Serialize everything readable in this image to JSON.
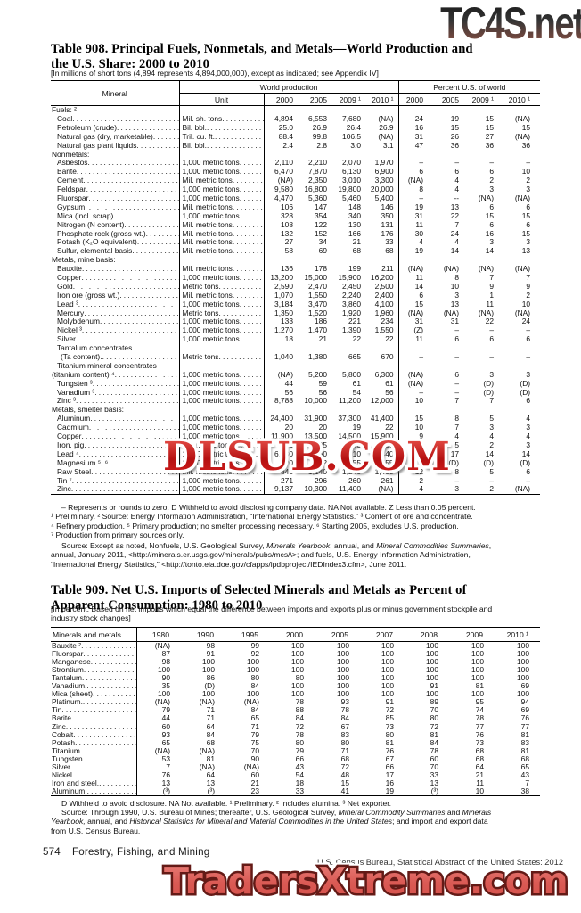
{
  "watermarks": {
    "top": "TC4S.net",
    "middle": "DLSUB.COM",
    "bottom": "TradersXtreme.com"
  },
  "t908": {
    "title1": "Table 908. Principal Fuels, Nonmetals, and Metals—World Production and",
    "title2": "the U.S. Share: 2000 to 2010",
    "note": "[In millions of short tons (4,894 represents 4,894,000,000), except as indicated; see Appendix IV]",
    "head": {
      "mineral": "Mineral",
      "world": "World production",
      "pct": "Percent U.S. of world",
      "unit": "Unit",
      "years": [
        "2000",
        "2005",
        "2009 ¹",
        "2010 ¹"
      ]
    },
    "rows": [
      {
        "t": "s",
        "l": "Fuels: ²"
      },
      {
        "t": "d",
        "l": "Coal",
        "u": "Mil. sh. tons",
        "w": [
          "4,894",
          "6,553",
          "7,680",
          "(NA)"
        ],
        "p": [
          "24",
          "19",
          "15",
          "(NA)"
        ]
      },
      {
        "t": "d",
        "l": "Petroleum (crude)",
        "u": "Bil. bbl.",
        "w": [
          "25.0",
          "26.9",
          "26.4",
          "26.9"
        ],
        "p": [
          "16",
          "15",
          "15",
          "15"
        ]
      },
      {
        "t": "d",
        "l": "Natural gas (dry, marketable)",
        "u": "Tril. cu. ft.",
        "w": [
          "88.4",
          "99.8",
          "106.5",
          "(NA)"
        ],
        "p": [
          "31",
          "26",
          "27",
          "(NA)"
        ]
      },
      {
        "t": "d",
        "l": "Natural gas plant liquids",
        "u": "Bil. bbl.",
        "w": [
          "2.4",
          "2.8",
          "3.0",
          "3.1"
        ],
        "p": [
          "47",
          "36",
          "36",
          "36"
        ]
      },
      {
        "t": "s",
        "l": "Nonmetals:"
      },
      {
        "t": "d",
        "l": "Asbestos",
        "u": "1,000 metric tons",
        "w": [
          "2,110",
          "2,210",
          "2,070",
          "1,970"
        ],
        "p": [
          "–",
          "–",
          "–",
          "–"
        ]
      },
      {
        "t": "d",
        "l": "Barite",
        "u": "1,000 metric tons",
        "w": [
          "6,470",
          "7,870",
          "6,130",
          "6,900"
        ],
        "p": [
          "6",
          "6",
          "6",
          "10"
        ]
      },
      {
        "t": "d",
        "l": "Cement",
        "u": "Mil. metric tons",
        "w": [
          "(NA)",
          "2,350",
          "3,010",
          "3,300"
        ],
        "p": [
          "(NA)",
          "4",
          "2",
          "2"
        ]
      },
      {
        "t": "d",
        "l": "Feldspar",
        "u": "1,000 metric tons",
        "w": [
          "9,580",
          "16,800",
          "19,800",
          "20,000"
        ],
        "p": [
          "8",
          "4",
          "3",
          "3"
        ]
      },
      {
        "t": "d",
        "l": "Fluorspar",
        "u": "1,000 metric tons",
        "w": [
          "4,470",
          "5,360",
          "5,460",
          "5,400"
        ],
        "p": [
          "–",
          "--",
          "(NA)",
          "(NA)"
        ]
      },
      {
        "t": "d",
        "l": "Gypsum",
        "u": "Mil. metric tons",
        "w": [
          "106",
          "147",
          "148",
          "146"
        ],
        "p": [
          "19",
          "13",
          "6",
          "6"
        ]
      },
      {
        "t": "d",
        "l": "Mica (incl. scrap)",
        "u": "1,000 metric tons",
        "w": [
          "328",
          "354",
          "340",
          "350"
        ],
        "p": [
          "31",
          "22",
          "15",
          "15"
        ]
      },
      {
        "t": "d",
        "l": "Nitrogen (N content)",
        "u": "Mil. metric tons",
        "w": [
          "108",
          "122",
          "130",
          "131"
        ],
        "p": [
          "11",
          "7",
          "6",
          "6"
        ]
      },
      {
        "t": "d",
        "l": "Phosphate rock (gross wt.)",
        "u": "Mil. metric tons",
        "w": [
          "132",
          "152",
          "166",
          "176"
        ],
        "p": [
          "30",
          "24",
          "16",
          "15"
        ]
      },
      {
        "t": "d",
        "l": "Potash (K₂O equivalent)",
        "u": "Mil. metric tons",
        "w": [
          "27",
          "34",
          "21",
          "33"
        ],
        "p": [
          "4",
          "4",
          "3",
          "3"
        ]
      },
      {
        "t": "d",
        "l": "Sulfur, elemental basis",
        "u": "Mil. metric tons",
        "w": [
          "58",
          "69",
          "68",
          "68"
        ],
        "p": [
          "19",
          "14",
          "14",
          "13"
        ]
      },
      {
        "t": "s",
        "l": "Metals, mine basis:"
      },
      {
        "t": "d",
        "l": "Bauxite",
        "u": "Mil. metric tons",
        "w": [
          "136",
          "178",
          "199",
          "211"
        ],
        "p": [
          "(NA)",
          "(NA)",
          "(NA)",
          "(NA)"
        ]
      },
      {
        "t": "d",
        "l": "Copper",
        "u": "1,000 metric tons",
        "w": [
          "13,200",
          "15,000",
          "15,900",
          "16,200"
        ],
        "p": [
          "11",
          "8",
          "7",
          "7"
        ]
      },
      {
        "t": "d",
        "l": "Gold",
        "u": "Metric tons",
        "w": [
          "2,590",
          "2,470",
          "2,450",
          "2,500"
        ],
        "p": [
          "14",
          "10",
          "9",
          "9"
        ]
      },
      {
        "t": "d",
        "l": "Iron ore (gross wt.)",
        "u": "Mil. metric tons",
        "w": [
          "1,070",
          "1,550",
          "2,240",
          "2,400"
        ],
        "p": [
          "6",
          "3",
          "1",
          "2"
        ]
      },
      {
        "t": "d",
        "l": "Lead ³",
        "u": "1,000 metric tons",
        "w": [
          "3,184",
          "3,470",
          "3,860",
          "4,100"
        ],
        "p": [
          "15",
          "13",
          "11",
          "10"
        ]
      },
      {
        "t": "d",
        "l": "Mercury",
        "u": "Metric tons",
        "w": [
          "1,350",
          "1,520",
          "1,920",
          "1,960"
        ],
        "p": [
          "(NA)",
          "(NA)",
          "(NA)",
          "(NA)"
        ]
      },
      {
        "t": "d",
        "l": "Molybdenum",
        "u": "1,000 metric tons",
        "w": [
          "133",
          "186",
          "221",
          "234"
        ],
        "p": [
          "31",
          "31",
          "22",
          "24"
        ]
      },
      {
        "t": "d",
        "l": "Nickel ³",
        "u": "1,000 metric tons",
        "w": [
          "1,270",
          "1,470",
          "1,390",
          "1,550"
        ],
        "p": [
          "(Z)",
          "–",
          "–",
          "–"
        ]
      },
      {
        "t": "d",
        "l": "Silver",
        "u": "1,000 metric tons",
        "w": [
          "18",
          "21",
          "22",
          "22"
        ],
        "p": [
          "11",
          "6",
          "6",
          "6"
        ]
      },
      {
        "t": "l",
        "l": "Tantalum concentrates"
      },
      {
        "t": "d",
        "i": 2,
        "l": "(Ta content).",
        "u": "Metric tons",
        "w": [
          "1,040",
          "1,380",
          "665",
          "670"
        ],
        "p": [
          "–",
          "–",
          "–",
          "–"
        ]
      },
      {
        "t": "l",
        "l": "Titanium mineral concentrates"
      },
      {
        "t": "d",
        "i": 0,
        "l": "(titanium content) ⁴",
        "u": "1,000 metric tons",
        "w": [
          "(NA)",
          "5,200",
          "5,800",
          "6,300"
        ],
        "p": [
          "(NA)",
          "6",
          "3",
          "3"
        ]
      },
      {
        "t": "d",
        "l": "Tungsten ³",
        "u": "1,000 metric tons",
        "w": [
          "44",
          "59",
          "61",
          "61"
        ],
        "p": [
          "(NA)",
          "–",
          "(D)",
          "(D)"
        ]
      },
      {
        "t": "d",
        "l": "Vanadium ³",
        "u": "1,000 metric tons",
        "w": [
          "56",
          "56",
          "54",
          "56"
        ],
        "p": [
          "–",
          "–",
          "(D)",
          "(D)"
        ]
      },
      {
        "t": "d",
        "l": "Zinc ³",
        "u": "1,000 metric tons",
        "w": [
          "8,788",
          "10,000",
          "11,200",
          "12,000"
        ],
        "p": [
          "10",
          "7",
          "7",
          "6"
        ]
      },
      {
        "t": "s",
        "l": "Metals, smelter basis:"
      },
      {
        "t": "d",
        "l": "Aluminum",
        "u": "1,000 metric tons",
        "w": [
          "24,400",
          "31,900",
          "37,300",
          "41,400"
        ],
        "p": [
          "15",
          "8",
          "5",
          "4"
        ]
      },
      {
        "t": "d",
        "l": "Cadmium",
        "u": "1,000 metric tons",
        "w": [
          "20",
          "20",
          "19",
          "22"
        ],
        "p": [
          "10",
          "7",
          "3",
          "3"
        ]
      },
      {
        "t": "d",
        "l": "Copper",
        "u": "1,000 metric tons",
        "w": [
          "11,900",
          "13,500",
          "14,500",
          "15,900"
        ],
        "p": [
          "9",
          "4",
          "4",
          "4"
        ]
      },
      {
        "t": "d",
        "l": "Iron, pig",
        "u": "Mil. metric tons",
        "w": [
          "576",
          "805",
          "940",
          "1,030"
        ],
        "p": [
          "8",
          "5",
          "2",
          "3"
        ]
      },
      {
        "t": "d",
        "l": "Lead ⁴",
        "u": "1,000 metric tons",
        "w": [
          "6,680",
          "7,560",
          "8,710",
          "9,440"
        ],
        "p": [
          "22",
          "17",
          "14",
          "14"
        ]
      },
      {
        "t": "d",
        "l": "Magnesium ⁵, ⁶",
        "u": "1,000 metric tons",
        "w": [
          "420",
          "622",
          "655",
          "755"
        ],
        "p": [
          "(D)",
          "(D)",
          "(D)",
          "(D)"
        ]
      },
      {
        "t": "d",
        "l": "Raw Steel",
        "u": "Mil. metric tons",
        "w": [
          "845",
          "1,140",
          "1,240",
          "1,400"
        ],
        "p": [
          "12",
          "8",
          "5",
          "6"
        ]
      },
      {
        "t": "d",
        "l": "Tin ⁷",
        "u": "1,000 metric tons",
        "w": [
          "271",
          "296",
          "260",
          "261"
        ],
        "p": [
          "2",
          "–",
          "–",
          "–"
        ]
      },
      {
        "t": "d",
        "l": "Zinc",
        "u": "1,000 metric tons",
        "w": [
          "9,137",
          "10,300",
          "11,400",
          "(NA)"
        ],
        "p": [
          "4",
          "3",
          "2",
          "(NA)"
        ]
      }
    ],
    "footnotes": [
      "– Represents or rounds to zero. D Withheld to avoid disclosing company data. NA Not available. Z Less than 0.05 percent.",
      "¹ Preliminary. ² Source: Energy Information Administration, “International Energy Statistics.” ³ Content of ore and concentrate.",
      "⁴ Refinery production. ⁵ Primary production; no smelter processing necessary. ⁶ Starting 2005, excludes U.S. production.",
      "⁷ Production from primary sources only."
    ],
    "source": [
      [
        {
          "x": "Source: Except as noted, Nonfuels, U.S. Geological Survey, "
        },
        {
          "x": "Minerals Yearbook",
          "i": true
        },
        {
          "x": ", annual, and "
        },
        {
          "x": "Mineral Commodities Summaries",
          "i": true
        },
        {
          "x": ","
        }
      ],
      [
        {
          "x": "annual, January 2011, <http://minerals.er.usgs.gov/minerals/pubs/mcs/\\>; and fuels, U.S. Energy Information Administration,"
        }
      ],
      [
        {
          "x": "“International Energy Statistics,” <http://tonto.eia.doe.gov/cfapps/ipdbproject/IEDIndex3.cfm>, June 2011."
        }
      ]
    ]
  },
  "t909": {
    "title1": "Table 909. Net U.S. Imports of Selected Minerals and Metals as Percent of",
    "title2": "Apparent Consumption: 1980 to 2010",
    "note1": "[In percent. Based on net imports which equal  the difference between imports and exports plus or minus government stockpile and",
    "note2": "industry stock changes]",
    "head": {
      "label": "Minerals and metals",
      "years": [
        "1980",
        "1990",
        "1995",
        "2000",
        "2005",
        "2007",
        "2008",
        "2009",
        "2010 ¹"
      ]
    },
    "rows": [
      {
        "l": "Bauxite ²",
        "v": [
          "(NA)",
          "98",
          "99",
          "100",
          "100",
          "100",
          "100",
          "100",
          "100"
        ]
      },
      {
        "l": "Fluorspar",
        "v": [
          "87",
          "91",
          "92",
          "100",
          "100",
          "100",
          "100",
          "100",
          "100"
        ]
      },
      {
        "l": "Manganese",
        "v": [
          "98",
          "100",
          "100",
          "100",
          "100",
          "100",
          "100",
          "100",
          "100"
        ]
      },
      {
        "l": "Strontium",
        "v": [
          "100",
          "100",
          "100",
          "100",
          "100",
          "100",
          "100",
          "100",
          "100"
        ]
      },
      {
        "l": "Tantalum",
        "v": [
          "90",
          "86",
          "80",
          "80",
          "100",
          "100",
          "100",
          "100",
          "100"
        ]
      },
      {
        "l": "Vanadium.",
        "v": [
          "35",
          "(D)",
          "84",
          "100",
          "100",
          "100",
          "91",
          "81",
          "69"
        ]
      },
      {
        "l": "Mica (sheet)",
        "v": [
          "100",
          "100",
          "100",
          "100",
          "100",
          "100",
          "100",
          "100",
          "100"
        ]
      },
      {
        "l": "Platinum.",
        "v": [
          "(NA)",
          "(NA)",
          "(NA)",
          "78",
          "93",
          "91",
          "89",
          "95",
          "94"
        ]
      },
      {
        "l": "Tin",
        "v": [
          "79",
          "71",
          "84",
          "88",
          "78",
          "72",
          "70",
          "74",
          "69"
        ]
      },
      {
        "l": "Barite",
        "v": [
          "44",
          "71",
          "65",
          "84",
          "84",
          "85",
          "80",
          "78",
          "76"
        ]
      },
      {
        "l": "Zinc",
        "v": [
          "60",
          "64",
          "71",
          "72",
          "67",
          "73",
          "72",
          "77",
          "77"
        ]
      },
      {
        "l": "Cobalt",
        "v": [
          "93",
          "84",
          "79",
          "78",
          "83",
          "80",
          "81",
          "76",
          "81"
        ]
      },
      {
        "l": "Potash",
        "v": [
          "65",
          "68",
          "75",
          "80",
          "80",
          "81",
          "84",
          "73",
          "83"
        ]
      },
      {
        "l": "Titanium.",
        "v": [
          "(NA)",
          "(NA)",
          "70",
          "79",
          "71",
          "76",
          "78",
          "68",
          "81"
        ]
      },
      {
        "l": "Tungsten",
        "v": [
          "53",
          "81",
          "90",
          "66",
          "68",
          "67",
          "60",
          "68",
          "68"
        ]
      },
      {
        "l": "Silver",
        "v": [
          "7",
          "(NA)",
          "(NA)",
          "43",
          "72",
          "66",
          "70",
          "64",
          "65"
        ]
      },
      {
        "l": "Nickel.",
        "v": [
          "76",
          "64",
          "60",
          "54",
          "48",
          "17",
          "33",
          "21",
          "43"
        ]
      },
      {
        "l": "Iron and steel.",
        "v": [
          "13",
          "13",
          "21",
          "18",
          "15",
          "16",
          "13",
          "11",
          "7"
        ]
      },
      {
        "l": "Aluminum.",
        "v": [
          "(³)",
          "(³)",
          "23",
          "33",
          "41",
          "19",
          "(³)",
          "10",
          "38"
        ]
      }
    ],
    "footnote": "D Withheld to avoid disclosure. NA Not available. ¹ Preliminary. ² Includes alumina. ³ Net exporter.",
    "source": [
      [
        {
          "x": "Source: Through 1990, U.S. Bureau of Mines; thereafter, U.S. Geological Survey, "
        },
        {
          "x": "Mineral Commodity Summaries",
          "i": true
        },
        {
          "x": " and "
        },
        {
          "x": "Minerals",
          "i": true
        }
      ],
      [
        {
          "x": "Yearbook,",
          "i": true
        },
        {
          "x": " annual, and "
        },
        {
          "x": "Historical Statistics for Mineral and Material Commodities in the United States",
          "i": true
        },
        {
          "x": "; and import and export data"
        }
      ],
      [
        {
          "x": "from U.S. Census Bureau."
        }
      ]
    ]
  },
  "footer": {
    "page": "574",
    "section": "Forestry, Fishing, and Mining",
    "right": "U.S. Census Bureau, Statistical Abstract of the United States: 2012"
  }
}
